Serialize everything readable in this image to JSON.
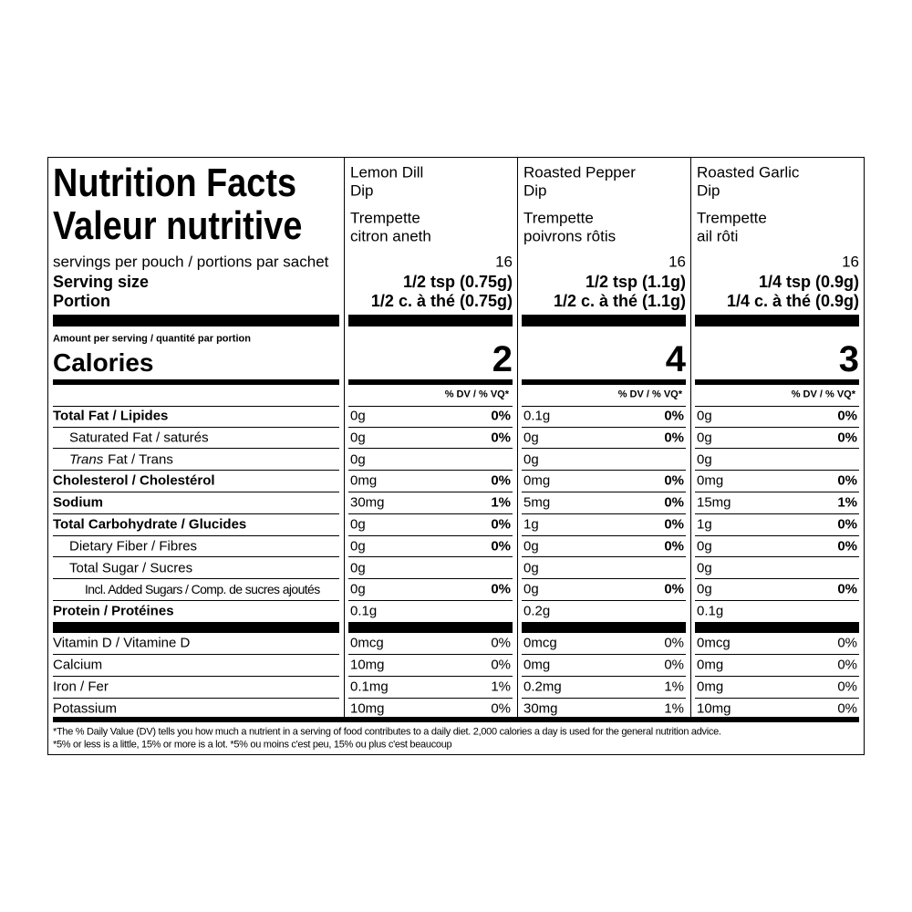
{
  "title_en": "Nutrition Facts",
  "title_fr": "Valeur nutritive",
  "servings_label": "servings per pouch / portions par sachet",
  "serving_size_label": "Serving size",
  "portion_label": "Portion",
  "amount_label": "Amount per serving / quantité par portion",
  "calories_label": "Calories",
  "dv_header": "% DV / % VQ*",
  "nutrients": [
    {
      "label": "Total Fat / Lipides"
    },
    {
      "label": "Saturated Fat / saturés"
    },
    {
      "italic": "Trans",
      "label": " Fat / Trans"
    },
    {
      "label": "Cholesterol / Cholestérol"
    },
    {
      "label": "Sodium"
    },
    {
      "label": "Total Carbohydrate / Glucides"
    },
    {
      "label": "Dietary Fiber / Fibres"
    },
    {
      "label": "Total Sugar / Sucres"
    },
    {
      "label": "Incl. Added Sugars / Comp. de sucres ajoutés"
    },
    {
      "label": "Protein / Protéines"
    }
  ],
  "vitamins": [
    "Vitamin D / Vitamine D",
    "Calcium",
    "Iron / Fer",
    "Potassium"
  ],
  "products": [
    {
      "name_en": [
        "Lemon Dill",
        "Dip"
      ],
      "name_fr": [
        "Trempette",
        "citron aneth"
      ],
      "servings": 16,
      "serving_size": "1/2 tsp (0.75g)",
      "portion": "1/2 c. à thé (0.75g)",
      "calories": 2,
      "nutrients": [
        [
          "0g",
          "0%"
        ],
        [
          "0g",
          "0%"
        ],
        [
          "0g",
          null
        ],
        [
          "0mg",
          "0%"
        ],
        [
          "30mg",
          "1%"
        ],
        [
          "0g",
          "0%"
        ],
        [
          "0g",
          "0%"
        ],
        [
          "0g",
          null
        ],
        [
          "0g",
          "0%"
        ],
        [
          "0.1g",
          null
        ]
      ],
      "vitamins": [
        [
          "0mcg",
          "0%"
        ],
        [
          "10mg",
          "0%"
        ],
        [
          "0.1mg",
          "1%"
        ],
        [
          "10mg",
          "0%"
        ]
      ]
    },
    {
      "name_en": [
        "Roasted Pepper",
        "Dip"
      ],
      "name_fr": [
        "Trempette",
        "poivrons rôtis"
      ],
      "servings": 16,
      "serving_size": "1/2 tsp (1.1g)",
      "portion": "1/2 c. à thé (1.1g)",
      "calories": 4,
      "nutrients": [
        [
          "0.1g",
          "0%"
        ],
        [
          "0g",
          "0%"
        ],
        [
          "0g",
          null
        ],
        [
          "0mg",
          "0%"
        ],
        [
          "5mg",
          "0%"
        ],
        [
          "1g",
          "0%"
        ],
        [
          "0g",
          "0%"
        ],
        [
          "0g",
          null
        ],
        [
          "0g",
          "0%"
        ],
        [
          "0.2g",
          null
        ]
      ],
      "vitamins": [
        [
          "0mcg",
          "0%"
        ],
        [
          "0mg",
          "0%"
        ],
        [
          "0.2mg",
          "1%"
        ],
        [
          "30mg",
          "1%"
        ]
      ]
    },
    {
      "name_en": [
        "Roasted Garlic",
        "Dip"
      ],
      "name_fr": [
        "Trempette",
        "ail rôti"
      ],
      "servings": 16,
      "serving_size": "1/4 tsp (0.9g)",
      "portion": "1/4 c. à thé (0.9g)",
      "calories": 3,
      "nutrients": [
        [
          "0g",
          "0%"
        ],
        [
          "0g",
          "0%"
        ],
        [
          "0g",
          null
        ],
        [
          "0mg",
          "0%"
        ],
        [
          "15mg",
          "1%"
        ],
        [
          "1g",
          "0%"
        ],
        [
          "0g",
          "0%"
        ],
        [
          "0g",
          null
        ],
        [
          "0g",
          "0%"
        ],
        [
          "0.1g",
          null
        ]
      ],
      "vitamins": [
        [
          "0mcg",
          "0%"
        ],
        [
          "0mg",
          "0%"
        ],
        [
          "0mg",
          "0%"
        ],
        [
          "10mg",
          "0%"
        ]
      ]
    }
  ],
  "footnote": [
    "*The % Daily Value (DV) tells you how much a nutrient in a serving of food contributes to a daily diet. 2,000 calories a day is used for the general nutrition advice.",
    "*5% or less is a little, 15% or more is a lot. *5% ou moins c'est peu, 15% ou plus c'est beaucoup"
  ]
}
